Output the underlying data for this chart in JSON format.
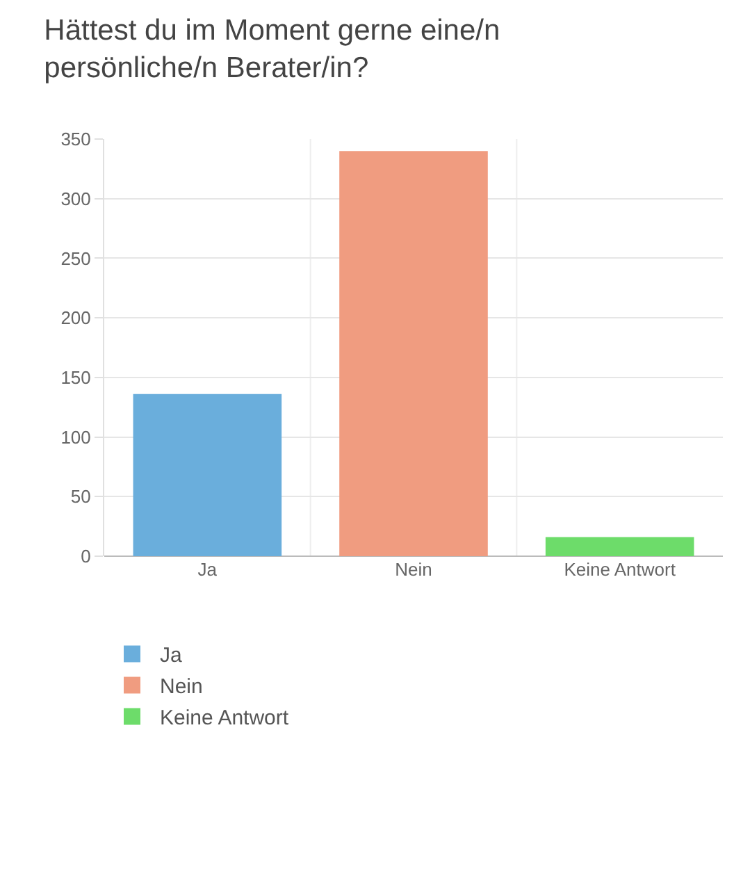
{
  "chart_data": {
    "type": "bar",
    "title": "Hättest du im Moment gerne eine/n persönliche/n Berater/in?",
    "categories": [
      "Ja",
      "Nein",
      "Keine Antwort"
    ],
    "series": [
      {
        "name": "Ja",
        "color": "#6aaedc",
        "values": [
          136,
          null,
          null
        ]
      },
      {
        "name": "Nein",
        "color": "#f09c80",
        "values": [
          null,
          340,
          null
        ]
      },
      {
        "name": "Keine Antwort",
        "color": "#6ddc6a",
        "values": [
          null,
          null,
          16
        ]
      }
    ],
    "ylim": [
      0,
      350
    ],
    "yticks": [
      0,
      50,
      100,
      150,
      200,
      250,
      300,
      350
    ],
    "grid": true,
    "legend": "bottom"
  }
}
